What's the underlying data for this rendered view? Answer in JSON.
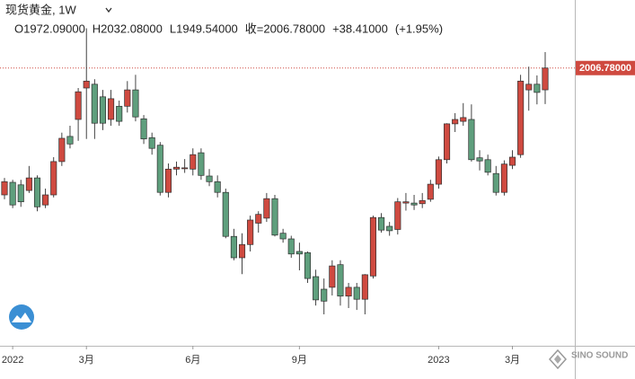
{
  "chart_data": {
    "type": "candlestick",
    "title": "现货黄金, 1W",
    "ohlc_labels": [
      "O1972.09000",
      "H2032.08000",
      "L1949.54000",
      "收=2006.78000",
      "+38.41000",
      "(+1.95%)"
    ],
    "categories": [
      null,
      "2022",
      null,
      null,
      null,
      null,
      null,
      null,
      null,
      null,
      "3月",
      null,
      null,
      null,
      null,
      null,
      null,
      null,
      null,
      null,
      null,
      null,
      null,
      "6月",
      null,
      null,
      null,
      null,
      null,
      null,
      null,
      null,
      null,
      null,
      null,
      null,
      "9月",
      null,
      null,
      null,
      null,
      null,
      null,
      null,
      null,
      null,
      null,
      null,
      null,
      null,
      null,
      null,
      null,
      "2023",
      null,
      null,
      null,
      null,
      null,
      null,
      null,
      null,
      "3月",
      null,
      null,
      null,
      null
    ],
    "open": [
      1805,
      1825,
      1821,
      1812,
      1832,
      1789,
      1805,
      1858,
      1898,
      1925,
      1975,
      1981,
      1961,
      1925,
      1946,
      1946,
      1972,
      1926,
      1896,
      1884,
      1809,
      1846,
      1847,
      1846,
      1872,
      1835,
      1826,
      1809,
      1739,
      1705,
      1726,
      1760,
      1768,
      1799,
      1744,
      1735,
      1715,
      1713,
      1675,
      1655,
      1658,
      1694,
      1644,
      1658,
      1639,
      1676,
      1769,
      1755,
      1750,
      1792,
      1792,
      1791,
      1798,
      1822,
      1861,
      1918,
      1922,
      1925,
      1864,
      1861,
      1839,
      1809,
      1852,
      1869,
      1972,
      1981,
      1972.09
    ],
    "high": [
      1832,
      1829,
      1829,
      1851,
      1836,
      1815,
      1865,
      1904,
      1915,
      1975,
      2070,
      1989,
      1972,
      1972,
      1955,
      1986,
      1996,
      1932,
      1904,
      1889,
      1855,
      1858,
      1862,
      1879,
      1879,
      1846,
      1836,
      1815,
      1751,
      1744,
      1772,
      1779,
      1808,
      1805,
      1751,
      1740,
      1729,
      1715,
      1686,
      1672,
      1701,
      1701,
      1665,
      1665,
      1679,
      1772,
      1776,
      1762,
      1800,
      1808,
      1805,
      1808,
      1829,
      1866,
      1919,
      1935,
      1951,
      1949,
      1876,
      1869,
      1851,
      1860,
      1876,
      1996,
      2009,
      1995,
      2032.08
    ],
    "low": [
      1798,
      1784,
      1786,
      1808,
      1779,
      1784,
      1801,
      1851,
      1879,
      1891,
      1894,
      1894,
      1908,
      1915,
      1915,
      1936,
      1922,
      1886,
      1869,
      1804,
      1801,
      1836,
      1840,
      1836,
      1829,
      1819,
      1801,
      1736,
      1701,
      1679,
      1715,
      1745,
      1762,
      1739,
      1729,
      1705,
      1685,
      1665,
      1629,
      1615,
      1645,
      1629,
      1625,
      1622,
      1615,
      1672,
      1745,
      1740,
      1742,
      1780,
      1781,
      1784,
      1794,
      1815,
      1855,
      1905,
      1915,
      1858,
      1844,
      1836,
      1804,
      1804,
      1846,
      1864,
      1939,
      1949,
      1949.54
    ],
    "close": [
      1826,
      1789,
      1794,
      1832,
      1786,
      1805,
      1858,
      1895,
      1886,
      1969,
      1986,
      1919,
      1919,
      1958,
      1922,
      1972,
      1929,
      1894,
      1879,
      1809,
      1846,
      1849,
      1848,
      1869,
      1836,
      1826,
      1809,
      1739,
      1705,
      1726,
      1765,
      1774,
      1799,
      1741,
      1735,
      1711,
      1711,
      1672,
      1638,
      1636,
      1692,
      1644,
      1658,
      1639,
      1678,
      1769,
      1749,
      1748,
      1794,
      1794,
      1789,
      1796,
      1822,
      1861,
      1918,
      1925,
      1928,
      1861,
      1859,
      1841,
      1809,
      1854,
      1865,
      1986,
      1981,
      1968,
      2006.78
    ],
    "ylim": [
      1565,
      2115
    ],
    "up_color": "#cf4a40",
    "down_color": "#5f9f7d",
    "border_color": "#2e2e2e",
    "last_price": 2006.78,
    "last_price_label": "2006.78000",
    "watermark": "SINO SOUND"
  }
}
